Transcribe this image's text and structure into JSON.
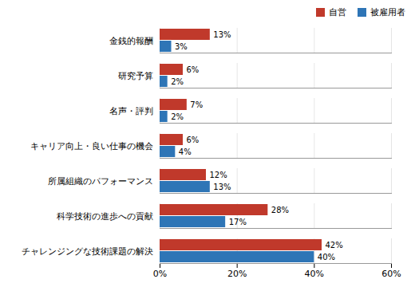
{
  "chart_data": {
    "type": "bar",
    "orientation": "horizontal",
    "categories": [
      "チャレンジングな技術課題の解決",
      "科学技術の進歩への貢献",
      "所属組織のパフォーマンス",
      "キャリア向上・良い仕事の機会",
      "名声・評判",
      "研究予算",
      "金銭的報酬"
    ],
    "series": [
      {
        "name": "自営",
        "color": "#C0392B",
        "values": [
          42,
          28,
          12,
          6,
          7,
          6,
          13
        ],
        "value_labels": [
          "42%",
          "28%",
          "12%",
          "6%",
          "7%",
          "6%",
          "13%"
        ]
      },
      {
        "name": "被雇用者",
        "color": "#2E75B6",
        "values": [
          40,
          17,
          13,
          4,
          2,
          2,
          3
        ],
        "value_labels": [
          "40%",
          "17%",
          "13%",
          "4%",
          "2%",
          "2%",
          "3%"
        ]
      }
    ],
    "xlim": [
      0,
      60
    ],
    "xticks": [
      {
        "value": 0,
        "label": "0%"
      },
      {
        "value": 20,
        "label": "20%"
      },
      {
        "value": 40,
        "label": "40%"
      },
      {
        "value": 60,
        "label": "60%"
      }
    ],
    "grid": true,
    "data_labels": true,
    "legend": "upper right"
  }
}
